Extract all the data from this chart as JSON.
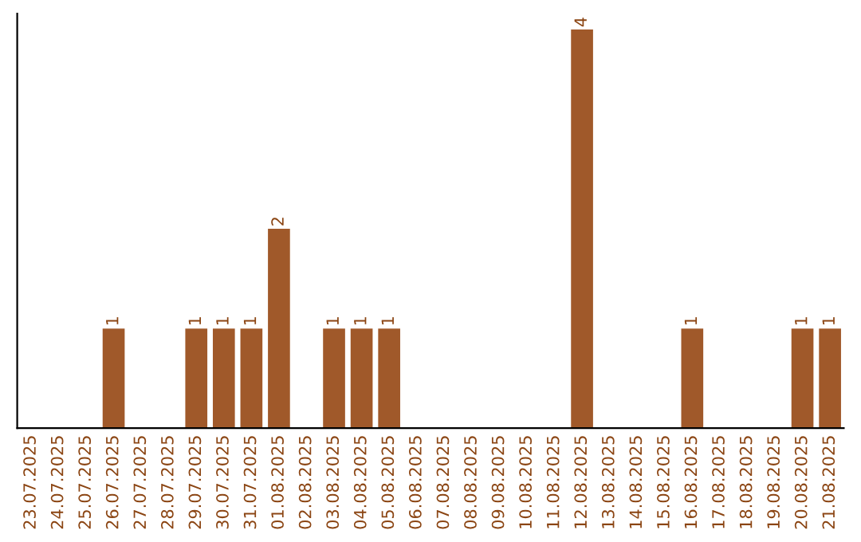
{
  "chart_data": {
    "type": "bar",
    "categories": [
      "23.07.2025",
      "24.07.2025",
      "25.07.2025",
      "26.07.2025",
      "27.07.2025",
      "28.07.2025",
      "29.07.2025",
      "30.07.2025",
      "31.07.2025",
      "01.08.2025",
      "02.08.2025",
      "03.08.2025",
      "04.08.2025",
      "05.08.2025",
      "06.08.2025",
      "07.08.2025",
      "08.08.2025",
      "09.08.2025",
      "10.08.2025",
      "11.08.2025",
      "12.08.2025",
      "13.08.2025",
      "14.08.2025",
      "15.08.2025",
      "16.08.2025",
      "17.08.2025",
      "18.08.2025",
      "19.08.2025",
      "20.08.2025",
      "21.08.2025"
    ],
    "values": [
      0,
      0,
      0,
      1,
      0,
      0,
      1,
      1,
      1,
      2,
      0,
      1,
      1,
      1,
      0,
      0,
      0,
      0,
      0,
      0,
      4,
      0,
      0,
      0,
      1,
      0,
      0,
      0,
      1,
      1
    ],
    "value_labels": [
      null,
      null,
      null,
      "1",
      null,
      null,
      "1",
      "1",
      "1",
      "2",
      null,
      "1",
      "1",
      "1",
      null,
      null,
      null,
      null,
      null,
      null,
      "4",
      null,
      null,
      null,
      "1",
      null,
      null,
      null,
      "1",
      "1"
    ],
    "color": "#a0592a",
    "tick_labels": "x",
    "grid": false,
    "legend": false
  }
}
